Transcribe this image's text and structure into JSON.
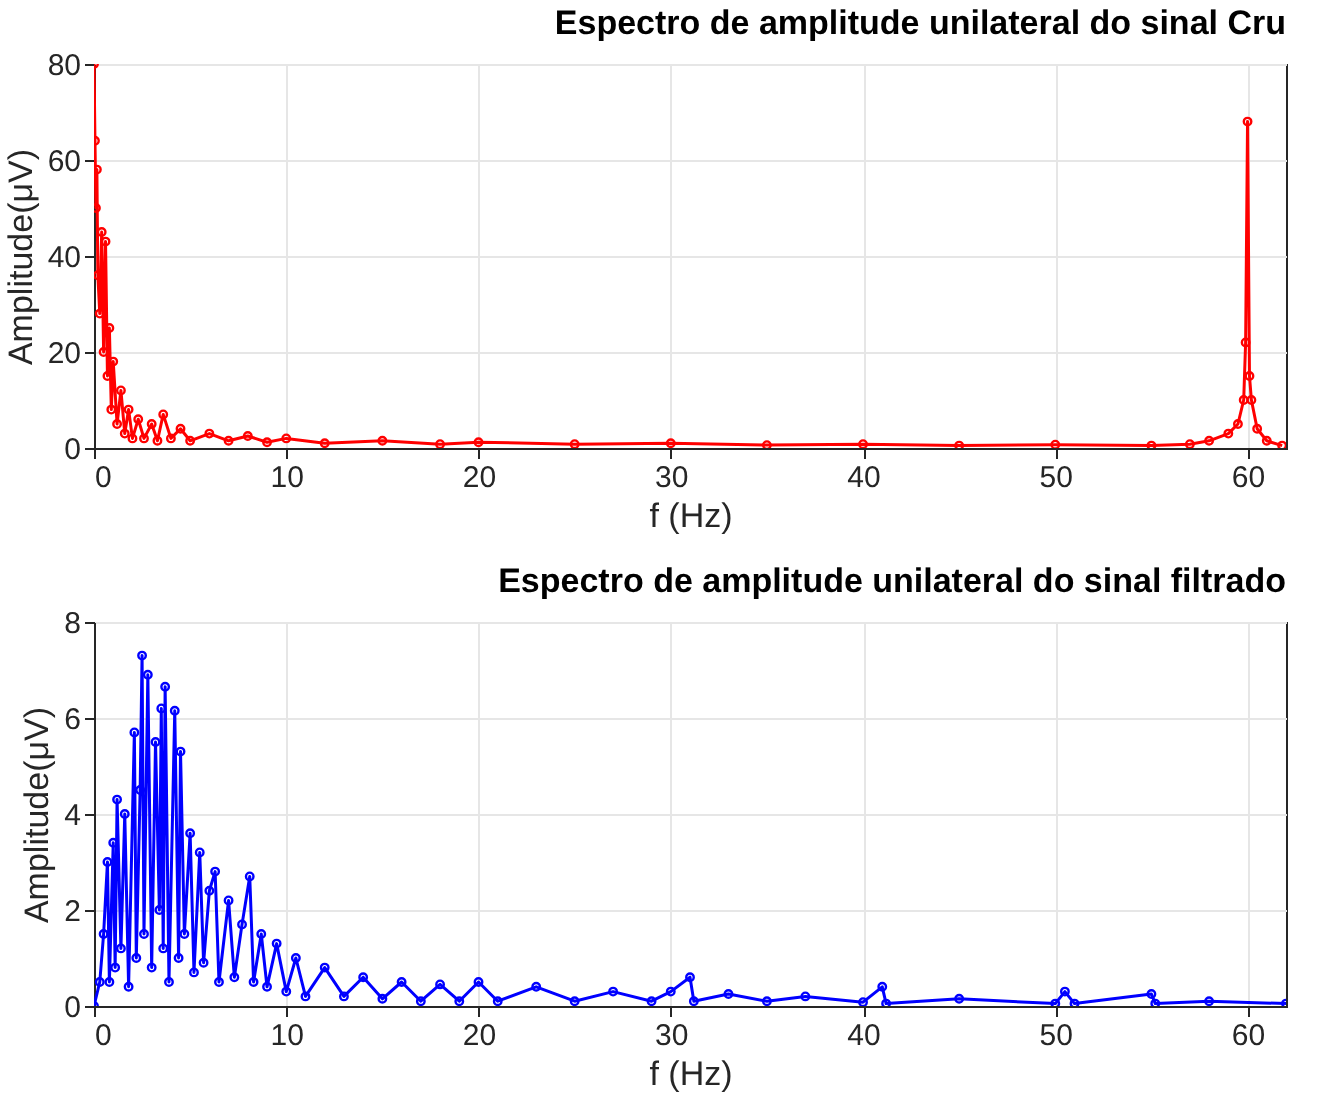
{
  "chart_data": [
    {
      "type": "line",
      "title": "Espectro de amplitude unilateral do sinal Cru",
      "xlabel": "f (Hz)",
      "ylabel": "Amplitude(μV)",
      "xlim": [
        0,
        62
      ],
      "xticks": [
        0,
        10,
        20,
        30,
        40,
        50,
        60
      ],
      "ylim": [
        0,
        80
      ],
      "yticks": [
        0,
        20,
        40,
        60,
        80
      ],
      "grid": true,
      "marker": "circle",
      "line_style": "solid",
      "x": [
        0,
        0.05,
        0.1,
        0.15,
        0.2,
        0.3,
        0.4,
        0.5,
        0.6,
        0.7,
        0.8,
        0.9,
        1.0,
        1.2,
        1.4,
        1.6,
        1.8,
        2,
        2.3,
        2.6,
        3,
        3.3,
        3.6,
        4,
        4.5,
        5,
        6,
        7,
        8,
        9,
        10,
        12,
        15,
        18,
        20,
        25,
        30,
        35,
        40,
        45,
        50,
        55,
        57,
        58,
        59,
        59.5,
        59.8,
        59.9,
        60,
        60.1,
        60.2,
        60.5,
        61,
        61.8
      ],
      "series": [
        {
          "color": "#ff0000",
          "values": [
            80,
            64,
            50,
            58,
            36,
            28,
            45,
            20,
            43,
            15,
            25,
            8,
            18,
            5,
            12,
            3,
            8,
            2,
            6,
            2,
            5,
            1.5,
            7,
            2,
            4,
            1.5,
            3,
            1.5,
            2.5,
            1.2,
            2,
            1,
            1.5,
            0.8,
            1.2,
            0.8,
            1,
            0.6,
            0.8,
            0.5,
            0.7,
            0.5,
            0.8,
            1.5,
            3,
            5,
            10,
            22,
            68,
            15,
            10,
            4,
            1.5,
            0.5
          ]
        }
      ]
    },
    {
      "type": "line",
      "title": "Espectro de amplitude unilateral do sinal filtrado",
      "xlabel": "f (Hz)",
      "ylabel": "Amplitude(μV)",
      "xlim": [
        0,
        62
      ],
      "xticks": [
        0,
        10,
        20,
        30,
        40,
        50,
        60
      ],
      "ylim": [
        0,
        8
      ],
      "yticks": [
        0,
        2,
        4,
        6,
        8
      ],
      "grid": true,
      "marker": "circle",
      "line_style": "solid",
      "x": [
        0,
        0.3,
        0.5,
        0.7,
        0.8,
        1.0,
        1.1,
        1.2,
        1.4,
        1.6,
        1.8,
        2.1,
        2.2,
        2.4,
        2.5,
        2.6,
        2.8,
        3.0,
        3.2,
        3.4,
        3.5,
        3.6,
        3.7,
        3.9,
        4.2,
        4.4,
        4.5,
        4.7,
        5.0,
        5.2,
        5.5,
        5.7,
        6.0,
        6.3,
        6.5,
        7.0,
        7.3,
        7.7,
        8.1,
        8.3,
        8.7,
        9.0,
        9.5,
        10,
        10.5,
        11,
        12,
        13,
        14,
        15,
        16,
        17,
        18,
        19,
        20,
        21,
        23,
        25,
        27,
        29,
        30,
        31,
        31.2,
        33,
        35,
        37,
        40,
        41,
        41.2,
        45,
        50,
        50.5,
        51,
        55,
        55.2,
        58,
        62
      ],
      "series": [
        {
          "color": "#0000ff",
          "values": [
            0,
            0.5,
            1.5,
            3.0,
            0.5,
            3.4,
            0.8,
            4.3,
            1.2,
            4.0,
            0.4,
            5.7,
            1.0,
            4.5,
            7.3,
            1.5,
            6.9,
            0.8,
            5.5,
            2.0,
            6.2,
            1.2,
            6.65,
            0.5,
            6.15,
            1.0,
            5.3,
            1.5,
            3.6,
            0.7,
            3.2,
            0.9,
            2.4,
            2.8,
            0.5,
            2.2,
            0.6,
            1.7,
            2.7,
            0.5,
            1.5,
            0.4,
            1.3,
            0.3,
            1.0,
            0.2,
            0.8,
            0.2,
            0.6,
            0.15,
            0.5,
            0.1,
            0.45,
            0.1,
            0.5,
            0.1,
            0.4,
            0.1,
            0.3,
            0.1,
            0.3,
            0.6,
            0.1,
            0.25,
            0.1,
            0.2,
            0.08,
            0.4,
            0.05,
            0.15,
            0.05,
            0.3,
            0.05,
            0.25,
            0.05,
            0.1,
            0.05
          ]
        }
      ]
    }
  ]
}
